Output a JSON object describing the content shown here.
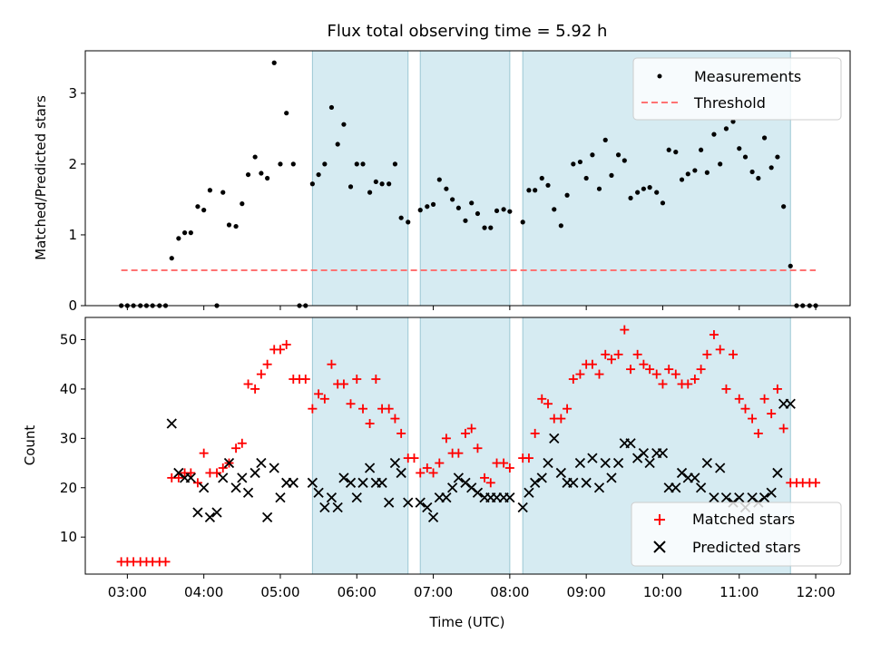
{
  "chart_data": [
    {
      "type": "scatter",
      "title": "Flux total observing time = 5.92 h",
      "ylabel": "Matched/Predicted stars",
      "xlabel": "",
      "x_unit": "hours UTC",
      "xlim": [
        2.45,
        12.45
      ],
      "ylim": [
        0,
        3.6
      ],
      "yticks": [
        0,
        1,
        2,
        3
      ],
      "legend_location": "upper right",
      "shaded_intervals": [
        [
          5.42,
          6.67
        ],
        [
          6.83,
          8.0
        ],
        [
          8.17,
          11.67
        ]
      ],
      "series": [
        {
          "name": "Measurements",
          "style": "points",
          "color": "#000000",
          "x": [
            2.92,
            3.0,
            3.08,
            3.17,
            3.25,
            3.33,
            3.42,
            3.5,
            3.58,
            3.67,
            3.75,
            3.83,
            3.92,
            4.0,
            4.08,
            4.17,
            4.25,
            4.33,
            4.42,
            4.5,
            4.58,
            4.67,
            4.75,
            4.83,
            4.92,
            5.0,
            5.08,
            5.17,
            5.25,
            5.33,
            5.42,
            5.5,
            5.58,
            5.67,
            5.75,
            5.83,
            5.92,
            6.0,
            6.08,
            6.17,
            6.25,
            6.33,
            6.42,
            6.5,
            6.58,
            6.67,
            6.83,
            6.92,
            7.0,
            7.08,
            7.17,
            7.25,
            7.33,
            7.42,
            7.5,
            7.58,
            7.67,
            7.75,
            7.83,
            7.92,
            8.0,
            8.17,
            8.25,
            8.33,
            8.42,
            8.5,
            8.58,
            8.67,
            8.75,
            8.83,
            8.92,
            9.0,
            9.08,
            9.17,
            9.25,
            9.33,
            9.42,
            9.5,
            9.58,
            9.67,
            9.75,
            9.83,
            9.92,
            10.0,
            10.08,
            10.17,
            10.25,
            10.33,
            10.42,
            10.5,
            10.58,
            10.67,
            10.75,
            10.83,
            10.92,
            11.0,
            11.08,
            11.17,
            11.25,
            11.33,
            11.42,
            11.5,
            11.58,
            11.67,
            11.75,
            11.83,
            11.92,
            12.0
          ],
          "y": [
            0,
            0,
            0,
            0,
            0,
            0,
            0,
            0,
            0.67,
            0.95,
            1.03,
            1.03,
            1.4,
            1.35,
            1.63,
            0,
            1.6,
            1.14,
            1.12,
            1.44,
            1.85,
            2.1,
            1.87,
            1.8,
            3.43,
            2.0,
            2.72,
            2.0,
            0,
            0,
            1.72,
            1.85,
            2.0,
            2.8,
            2.28,
            2.56,
            1.68,
            2.0,
            2.0,
            1.6,
            1.75,
            1.72,
            1.72,
            2.0,
            1.24,
            1.18,
            1.35,
            1.4,
            1.43,
            1.78,
            1.65,
            1.5,
            1.38,
            1.2,
            1.45,
            1.3,
            1.1,
            1.1,
            1.34,
            1.36,
            1.33,
            1.18,
            1.63,
            1.63,
            1.8,
            1.7,
            1.36,
            1.13,
            1.56,
            2.0,
            2.03,
            1.8,
            2.13,
            1.65,
            2.34,
            1.84,
            2.13,
            2.05,
            1.52,
            1.6,
            1.65,
            1.67,
            1.6,
            1.45,
            2.2,
            2.17,
            1.78,
            1.86,
            1.91,
            2.2,
            1.88,
            2.42,
            2.0,
            2.5,
            2.6,
            2.22,
            2.1,
            1.89,
            1.8,
            2.37,
            1.95,
            2.1,
            1.4,
            0.56,
            0,
            0,
            0,
            0
          ]
        },
        {
          "name": "Threshold",
          "style": "dashed-line",
          "color": "#ff7373",
          "x": [
            2.92,
            12.0
          ],
          "y": [
            0.5,
            0.5
          ]
        }
      ]
    },
    {
      "type": "scatter",
      "title": "",
      "ylabel": "Count",
      "xlabel": "Time (UTC)",
      "x_unit": "hours UTC",
      "xlim": [
        2.45,
        12.45
      ],
      "ylim": [
        2.5,
        54.5
      ],
      "yticks": [
        10,
        20,
        30,
        40,
        50
      ],
      "xtick_labels": [
        "03:00",
        "04:00",
        "05:00",
        "06:00",
        "07:00",
        "08:00",
        "09:00",
        "10:00",
        "11:00",
        "12:00"
      ],
      "xtick_values": [
        3,
        4,
        5,
        6,
        7,
        8,
        9,
        10,
        11,
        12
      ],
      "legend_location": "lower right",
      "shaded_intervals": [
        [
          5.42,
          6.67
        ],
        [
          6.83,
          8.0
        ],
        [
          8.17,
          11.67
        ]
      ],
      "series": [
        {
          "name": "Matched stars",
          "marker": "plus",
          "color": "#ff0000",
          "x": [
            2.92,
            3.0,
            3.08,
            3.17,
            3.25,
            3.33,
            3.42,
            3.5,
            3.58,
            3.67,
            3.75,
            3.83,
            3.92,
            4.0,
            4.08,
            4.17,
            4.25,
            4.33,
            4.42,
            4.5,
            4.58,
            4.67,
            4.75,
            4.83,
            4.92,
            5.0,
            5.08,
            5.17,
            5.25,
            5.33,
            5.42,
            5.5,
            5.58,
            5.67,
            5.75,
            5.83,
            5.92,
            6.0,
            6.08,
            6.17,
            6.25,
            6.33,
            6.42,
            6.5,
            6.58,
            6.67,
            6.75,
            6.83,
            6.92,
            7.0,
            7.08,
            7.17,
            7.25,
            7.33,
            7.42,
            7.5,
            7.58,
            7.67,
            7.75,
            7.83,
            7.92,
            8.0,
            8.17,
            8.25,
            8.33,
            8.42,
            8.5,
            8.58,
            8.67,
            8.75,
            8.83,
            8.92,
            9.0,
            9.08,
            9.17,
            9.25,
            9.33,
            9.42,
            9.5,
            9.58,
            9.67,
            9.75,
            9.83,
            9.92,
            10.0,
            10.08,
            10.17,
            10.25,
            10.33,
            10.42,
            10.5,
            10.58,
            10.67,
            10.75,
            10.83,
            10.92,
            11.0,
            11.08,
            11.17,
            11.25,
            11.33,
            11.42,
            11.5,
            11.58,
            11.67,
            11.75,
            11.83,
            11.92,
            12.0
          ],
          "y": [
            5,
            5,
            5,
            5,
            5,
            5,
            5,
            5,
            22,
            22,
            23,
            23,
            21,
            27,
            23,
            23,
            24,
            25,
            28,
            29,
            41,
            40,
            43,
            45,
            48,
            48,
            49,
            42,
            42,
            42,
            36,
            39,
            38,
            45,
            41,
            41,
            37,
            42,
            36,
            33,
            42,
            36,
            36,
            34,
            31,
            26,
            26,
            23,
            24,
            23,
            25,
            30,
            27,
            27,
            31,
            32,
            28,
            22,
            21,
            25,
            25,
            24,
            26,
            26,
            31,
            38,
            37,
            34,
            34,
            36,
            42,
            43,
            45,
            45,
            43,
            47,
            46,
            47,
            52,
            44,
            47,
            45,
            44,
            43,
            41,
            44,
            43,
            41,
            41,
            42,
            44,
            47,
            51,
            48,
            40,
            47,
            38,
            36,
            34,
            31,
            38,
            35,
            40,
            32,
            21,
            21,
            21,
            21,
            21
          ]
        },
        {
          "name": "Predicted stars",
          "marker": "cross",
          "color": "#000000",
          "x": [
            3.58,
            3.67,
            3.75,
            3.83,
            3.92,
            4.0,
            4.08,
            4.17,
            4.25,
            4.33,
            4.42,
            4.5,
            4.58,
            4.67,
            4.75,
            4.83,
            4.92,
            5.0,
            5.08,
            5.17,
            5.42,
            5.5,
            5.58,
            5.67,
            5.75,
            5.83,
            5.92,
            6.0,
            6.08,
            6.17,
            6.25,
            6.33,
            6.42,
            6.5,
            6.58,
            6.67,
            6.83,
            6.92,
            7.0,
            7.08,
            7.17,
            7.25,
            7.33,
            7.42,
            7.5,
            7.58,
            7.67,
            7.75,
            7.83,
            7.92,
            8.0,
            8.17,
            8.25,
            8.33,
            8.42,
            8.5,
            8.58,
            8.67,
            8.75,
            8.83,
            8.92,
            9.0,
            9.08,
            9.17,
            9.25,
            9.33,
            9.42,
            9.5,
            9.58,
            9.67,
            9.75,
            9.83,
            9.92,
            10.0,
            10.08,
            10.17,
            10.25,
            10.33,
            10.42,
            10.5,
            10.58,
            10.67,
            10.75,
            10.83,
            10.92,
            11.0,
            11.08,
            11.17,
            11.25,
            11.33,
            11.42,
            11.5,
            11.58,
            11.67
          ],
          "y": [
            33,
            23,
            22,
            22,
            15,
            20,
            14,
            15,
            22,
            25,
            20,
            22,
            19,
            23,
            25,
            14,
            24,
            18,
            21,
            21,
            21,
            19,
            16,
            18,
            16,
            22,
            21,
            18,
            21,
            24,
            21,
            21,
            17,
            25,
            23,
            17,
            17,
            16,
            14,
            18,
            18,
            20,
            22,
            21,
            20,
            19,
            18,
            18,
            18,
            18,
            18,
            16,
            19,
            21,
            22,
            25,
            30,
            23,
            21,
            21,
            25,
            21,
            26,
            20,
            25,
            22,
            25,
            29,
            29,
            26,
            27,
            25,
            27,
            27,
            20,
            20,
            23,
            22,
            22,
            20,
            25,
            18,
            24,
            18,
            17,
            18,
            16,
            18,
            17,
            18,
            19,
            23,
            37,
            37
          ]
        }
      ]
    }
  ]
}
